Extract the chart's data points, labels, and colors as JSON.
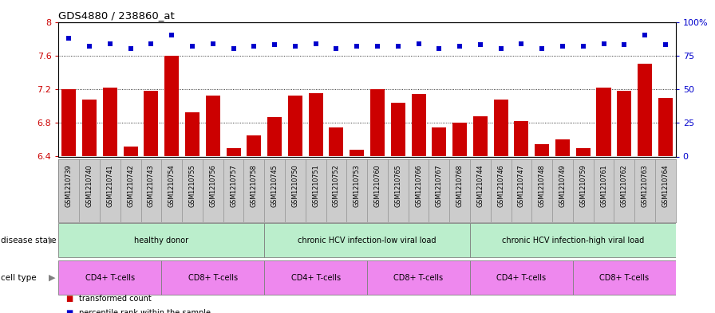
{
  "title": "GDS4880 / 238860_at",
  "samples": [
    "GSM1210739",
    "GSM1210740",
    "GSM1210741",
    "GSM1210742",
    "GSM1210743",
    "GSM1210754",
    "GSM1210755",
    "GSM1210756",
    "GSM1210757",
    "GSM1210758",
    "GSM1210745",
    "GSM1210750",
    "GSM1210751",
    "GSM1210752",
    "GSM1210753",
    "GSM1210760",
    "GSM1210765",
    "GSM1210766",
    "GSM1210767",
    "GSM1210768",
    "GSM1210744",
    "GSM1210746",
    "GSM1210747",
    "GSM1210748",
    "GSM1210749",
    "GSM1210759",
    "GSM1210761",
    "GSM1210762",
    "GSM1210763",
    "GSM1210764"
  ],
  "bar_values": [
    7.2,
    7.08,
    7.22,
    6.52,
    7.18,
    7.6,
    6.93,
    7.12,
    6.5,
    6.65,
    6.87,
    7.12,
    7.15,
    6.75,
    6.48,
    7.2,
    7.04,
    7.14,
    6.75,
    6.8,
    6.88,
    7.08,
    6.82,
    6.55,
    6.6,
    6.5,
    7.22,
    7.18,
    7.5,
    7.1
  ],
  "percentile_values": [
    88,
    82,
    84,
    80,
    84,
    90,
    82,
    84,
    80,
    82,
    83,
    82,
    84,
    80,
    82,
    82,
    82,
    84,
    80,
    82,
    83,
    80,
    84,
    80,
    82,
    82,
    84,
    83,
    90,
    83
  ],
  "bar_color": "#cc0000",
  "percentile_color": "#0000cc",
  "ylim_left": [
    6.4,
    8.0
  ],
  "ylim_right": [
    0,
    100
  ],
  "yticks_left": [
    6.4,
    6.8,
    7.2,
    7.6,
    8.0
  ],
  "ytick_labels_left": [
    "6.4",
    "6.8",
    "7.2",
    "7.6",
    "8"
  ],
  "yticks_right": [
    0,
    25,
    50,
    75,
    100
  ],
  "ytick_labels_right": [
    "0",
    "25",
    "50",
    "75",
    "100%"
  ],
  "grid_values": [
    6.8,
    7.2,
    7.6
  ],
  "disease_state_groups": [
    {
      "label": "healthy donor",
      "start": 0,
      "end": 10,
      "color": "#bbeecc"
    },
    {
      "label": "chronic HCV infection-low viral load",
      "start": 10,
      "end": 20,
      "color": "#bbeecc"
    },
    {
      "label": "chronic HCV infection-high viral load",
      "start": 20,
      "end": 30,
      "color": "#bbeecc"
    }
  ],
  "cell_type_groups": [
    {
      "label": "CD4+ T-cells",
      "start": 0,
      "end": 5,
      "color": "#ee88ee"
    },
    {
      "label": "CD8+ T-cells",
      "start": 5,
      "end": 10,
      "color": "#ee88ee"
    },
    {
      "label": "CD4+ T-cells",
      "start": 10,
      "end": 15,
      "color": "#ee88ee"
    },
    {
      "label": "CD8+ T-cells",
      "start": 15,
      "end": 20,
      "color": "#ee88ee"
    },
    {
      "label": "CD4+ T-cells",
      "start": 20,
      "end": 25,
      "color": "#ee88ee"
    },
    {
      "label": "CD8+ T-cells",
      "start": 25,
      "end": 30,
      "color": "#ee88ee"
    }
  ],
  "disease_label": "disease state",
  "cell_label": "cell type",
  "legend_bar": "transformed count",
  "legend_pct": "percentile rank within the sample",
  "background_color": "#ffffff",
  "xticklabel_bg": "#cccccc",
  "n_samples": 30
}
